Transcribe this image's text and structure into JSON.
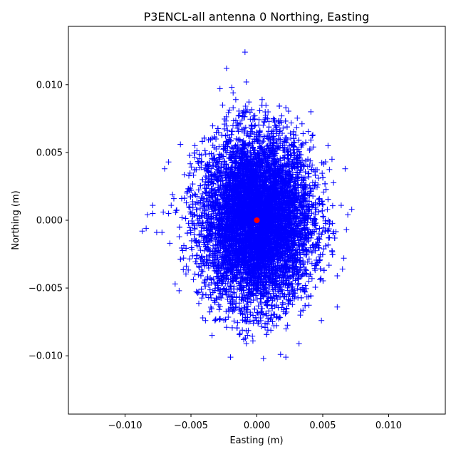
{
  "chart_data": {
    "type": "scatter",
    "title": "P3ENCL-all antenna 0 Northing, Easting",
    "xlabel": "Easting (m)",
    "ylabel": "Northing (m)",
    "xlim": [
      -0.0143,
      0.0143
    ],
    "ylim": [
      -0.0143,
      0.0143
    ],
    "x_ticks": [
      -0.01,
      -0.005,
      0.0,
      0.005,
      0.01
    ],
    "x_tick_labels": [
      "−0.010",
      "−0.005",
      "0.000",
      "0.005",
      "0.010"
    ],
    "y_ticks": [
      -0.01,
      -0.005,
      0.0,
      0.005,
      0.01
    ],
    "y_tick_labels": [
      "−0.010",
      "−0.005",
      "0.000",
      "0.005",
      "0.010"
    ],
    "grid": false,
    "legend": "none",
    "series": [
      {
        "marker": "+",
        "color": "#0000ff",
        "distribution": {
          "center": [
            0.0,
            0.0
          ],
          "std_x": 0.0021,
          "std_y": 0.0031,
          "extent_x": [
            -0.0087,
            0.0072
          ],
          "extent_y": [
            -0.0102,
            0.0124
          ]
        },
        "outlier_points": [
          [
            -0.0009,
            0.0124
          ],
          [
            -0.0023,
            0.0112
          ],
          [
            -0.0008,
            0.0102
          ],
          [
            -0.0019,
            0.0098
          ],
          [
            -0.0028,
            0.0097
          ],
          [
            -0.0018,
            0.0094
          ],
          [
            -0.0016,
            0.0089
          ],
          [
            0.0004,
            0.0089
          ],
          [
            0.0041,
            0.008
          ],
          [
            -0.0026,
            0.0085
          ],
          [
            0.0022,
            0.0083
          ],
          [
            -0.0018,
            0.0083
          ],
          [
            -0.0058,
            0.0056
          ],
          [
            -0.0047,
            0.0055
          ],
          [
            -0.0042,
            0.0048
          ],
          [
            0.0054,
            0.0055
          ],
          [
            0.0067,
            0.0038
          ],
          [
            -0.0067,
            0.0043
          ],
          [
            -0.007,
            0.0038
          ],
          [
            0.0057,
            0.0045
          ],
          [
            -0.0064,
            0.0019
          ],
          [
            -0.0063,
            0.0016
          ],
          [
            -0.0065,
            0.0011
          ],
          [
            -0.0079,
            0.0011
          ],
          [
            -0.0083,
            0.0004
          ],
          [
            -0.0079,
            0.0005
          ],
          [
            -0.0087,
            -0.0008
          ],
          [
            -0.0084,
            -0.0006
          ],
          [
            -0.0076,
            -0.0009
          ],
          [
            -0.0072,
            -0.0009
          ],
          [
            -0.0071,
            0.0006
          ],
          [
            -0.0067,
            0.0005
          ],
          [
            0.0072,
            0.0008
          ],
          [
            0.0069,
            0.0004
          ],
          [
            0.0068,
            -0.0007
          ],
          [
            0.0064,
            0.0011
          ],
          [
            -0.0066,
            -0.0017
          ],
          [
            0.0066,
            -0.0028
          ],
          [
            0.0065,
            -0.0036
          ],
          [
            -0.0062,
            -0.0047
          ],
          [
            -0.0059,
            -0.0052
          ],
          [
            0.0061,
            -0.0041
          ],
          [
            0.0061,
            -0.0064
          ],
          [
            0.0049,
            -0.0074
          ],
          [
            -0.0041,
            -0.0072
          ],
          [
            -0.0039,
            -0.0074
          ],
          [
            -0.0034,
            -0.0085
          ],
          [
            -0.0023,
            -0.0079
          ],
          [
            -0.002,
            -0.0101
          ],
          [
            0.0005,
            -0.0102
          ],
          [
            0.0018,
            -0.0099
          ],
          [
            0.0022,
            -0.0101
          ],
          [
            0.0032,
            -0.0091
          ],
          [
            -0.001,
            -0.0088
          ],
          [
            -0.0008,
            -0.0091
          ],
          [
            -0.0003,
            -0.0089
          ]
        ]
      },
      {
        "marker": "o",
        "color": "#ff0000",
        "points": [
          [
            0.0,
            0.0
          ]
        ]
      }
    ]
  }
}
